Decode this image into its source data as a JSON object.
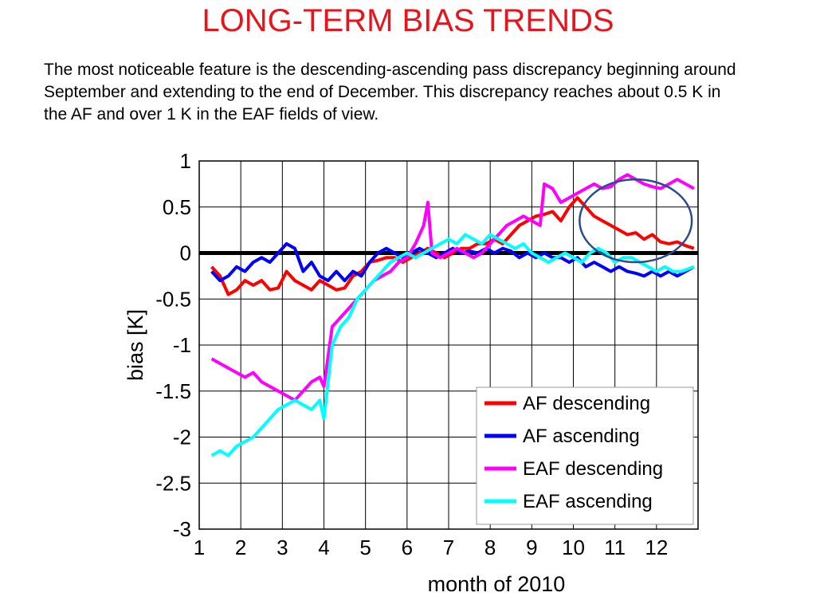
{
  "title": "LONG-TERM BIAS TRENDS",
  "description": "The most noticeable feature is the descending-ascending pass discrepancy beginning around September and extending to the end of December. This discrepancy reaches about 0.5 K in the AF and over 1 K in the EAF fields of view.",
  "chart_data": {
    "type": "line",
    "xlabel": "month of 2010",
    "ylabel": "bias [K]",
    "xlim": [
      1,
      13
    ],
    "ylim": [
      -3,
      1
    ],
    "x_ticks": [
      "1",
      "2",
      "3",
      "4",
      "5",
      "6",
      "7",
      "8",
      "9",
      "10",
      "11",
      "12"
    ],
    "y_ticks": [
      "1",
      "0.5",
      "0",
      "-0.5",
      "-1",
      "-1.5",
      "-2",
      "-2.5",
      "-3"
    ],
    "grid": true,
    "legend_position": "bottom-right",
    "zero_line": 0,
    "highlight_ellipse": {
      "center": [
        11.5,
        0.35
      ],
      "x_radius": 1.35,
      "y_radius": 0.45
    },
    "series": [
      {
        "name": "AF descending",
        "color": "#ff0000",
        "x": [
          1.3,
          1.5,
          1.7,
          1.9,
          2.1,
          2.3,
          2.5,
          2.7,
          2.9,
          3.1,
          3.3,
          3.5,
          3.7,
          3.9,
          4.1,
          4.3,
          4.5,
          4.7,
          4.9,
          5.1,
          5.3,
          5.5,
          5.7,
          5.9,
          6.1,
          6.3,
          6.5,
          6.7,
          6.9,
          7.1,
          7.3,
          7.5,
          7.7,
          7.9,
          8.1,
          8.3,
          8.5,
          8.7,
          8.9,
          9.1,
          9.3,
          9.5,
          9.7,
          9.9,
          10.1,
          10.3,
          10.5,
          10.7,
          10.9,
          11.1,
          11.3,
          11.5,
          11.7,
          11.9,
          12.1,
          12.3,
          12.5,
          12.7,
          12.9
        ],
        "y": [
          -0.15,
          -0.25,
          -0.45,
          -0.4,
          -0.3,
          -0.35,
          -0.3,
          -0.4,
          -0.38,
          -0.2,
          -0.3,
          -0.35,
          -0.4,
          -0.3,
          -0.35,
          -0.4,
          -0.38,
          -0.25,
          -0.2,
          -0.1,
          -0.08,
          -0.05,
          -0.05,
          -0.1,
          -0.05,
          0.0,
          0.05,
          0.0,
          -0.05,
          0.0,
          0.05,
          0.05,
          0.1,
          0.1,
          0.15,
          0.1,
          0.2,
          0.3,
          0.35,
          0.4,
          0.42,
          0.45,
          0.35,
          0.5,
          0.6,
          0.5,
          0.4,
          0.35,
          0.3,
          0.25,
          0.2,
          0.22,
          0.15,
          0.2,
          0.12,
          0.1,
          0.12,
          0.08,
          0.05
        ]
      },
      {
        "name": "AF ascending",
        "color": "#0000ff",
        "x": [
          1.3,
          1.5,
          1.7,
          1.9,
          2.1,
          2.3,
          2.5,
          2.7,
          2.9,
          3.1,
          3.3,
          3.5,
          3.7,
          3.9,
          4.1,
          4.3,
          4.5,
          4.7,
          4.9,
          5.1,
          5.3,
          5.5,
          5.7,
          5.9,
          6.1,
          6.3,
          6.5,
          6.7,
          6.9,
          7.1,
          7.3,
          7.5,
          7.7,
          7.9,
          8.1,
          8.3,
          8.5,
          8.7,
          8.9,
          9.1,
          9.3,
          9.5,
          9.7,
          9.9,
          10.1,
          10.3,
          10.5,
          10.7,
          10.9,
          11.1,
          11.3,
          11.5,
          11.7,
          11.9,
          12.1,
          12.3,
          12.5,
          12.7,
          12.9
        ],
        "y": [
          -0.2,
          -0.3,
          -0.25,
          -0.15,
          -0.2,
          -0.1,
          -0.05,
          -0.1,
          0.0,
          0.1,
          0.05,
          -0.2,
          -0.1,
          -0.25,
          -0.3,
          -0.2,
          -0.3,
          -0.2,
          -0.25,
          -0.1,
          0.0,
          0.05,
          0.0,
          -0.05,
          0.0,
          0.05,
          0.0,
          -0.05,
          0.0,
          0.05,
          0.0,
          0.02,
          0.0,
          0.05,
          0.0,
          0.05,
          0.02,
          -0.05,
          0.0,
          -0.05,
          0.0,
          -0.05,
          -0.05,
          -0.1,
          -0.05,
          -0.15,
          -0.1,
          -0.15,
          -0.2,
          -0.15,
          -0.2,
          -0.22,
          -0.25,
          -0.2,
          -0.25,
          -0.2,
          -0.25,
          -0.2,
          -0.15
        ]
      },
      {
        "name": "EAF descending",
        "color": "#ff00ff",
        "x": [
          1.3,
          1.5,
          1.7,
          1.9,
          2.1,
          2.3,
          2.5,
          2.7,
          2.9,
          3.1,
          3.3,
          3.5,
          3.7,
          3.9,
          4.0,
          4.2,
          4.4,
          4.6,
          4.8,
          5.0,
          5.2,
          5.4,
          5.6,
          5.8,
          6.0,
          6.2,
          6.4,
          6.5,
          6.6,
          6.8,
          7.0,
          7.2,
          7.4,
          7.6,
          7.8,
          8.0,
          8.2,
          8.4,
          8.6,
          8.8,
          9.0,
          9.2,
          9.3,
          9.5,
          9.7,
          9.9,
          10.1,
          10.3,
          10.5,
          10.7,
          10.9,
          11.1,
          11.3,
          11.5,
          11.7,
          11.9,
          12.1,
          12.3,
          12.5,
          12.7,
          12.9
        ],
        "y": [
          -1.15,
          -1.2,
          -1.25,
          -1.3,
          -1.35,
          -1.3,
          -1.4,
          -1.45,
          -1.5,
          -1.55,
          -1.6,
          -1.5,
          -1.4,
          -1.35,
          -1.45,
          -0.8,
          -0.7,
          -0.6,
          -0.5,
          -0.4,
          -0.3,
          -0.25,
          -0.2,
          -0.1,
          -0.05,
          0.1,
          0.3,
          0.55,
          0.0,
          -0.05,
          0.0,
          0.05,
          0.0,
          -0.05,
          0.0,
          0.1,
          0.2,
          0.3,
          0.35,
          0.4,
          0.35,
          0.3,
          0.75,
          0.7,
          0.55,
          0.6,
          0.65,
          0.7,
          0.75,
          0.7,
          0.72,
          0.8,
          0.85,
          0.8,
          0.75,
          0.72,
          0.7,
          0.75,
          0.8,
          0.75,
          0.7
        ]
      },
      {
        "name": "EAF ascending",
        "color": "#00ffff",
        "x": [
          1.3,
          1.5,
          1.7,
          1.9,
          2.1,
          2.3,
          2.5,
          2.7,
          2.9,
          3.1,
          3.3,
          3.5,
          3.7,
          3.9,
          4.0,
          4.2,
          4.4,
          4.6,
          4.8,
          5.0,
          5.2,
          5.4,
          5.6,
          5.8,
          6.0,
          6.2,
          6.4,
          6.6,
          6.8,
          7.0,
          7.2,
          7.4,
          7.6,
          7.8,
          8.0,
          8.2,
          8.4,
          8.6,
          8.8,
          9.0,
          9.2,
          9.4,
          9.6,
          9.8,
          10.0,
          10.2,
          10.4,
          10.6,
          10.8,
          11.0,
          11.2,
          11.4,
          11.6,
          11.8,
          12.0,
          12.2,
          12.4,
          12.6,
          12.9
        ],
        "y": [
          -2.2,
          -2.15,
          -2.2,
          -2.1,
          -2.05,
          -2.0,
          -1.9,
          -1.8,
          -1.7,
          -1.65,
          -1.6,
          -1.65,
          -1.7,
          -1.6,
          -1.8,
          -1.0,
          -0.8,
          -0.7,
          -0.5,
          -0.4,
          -0.3,
          -0.2,
          -0.1,
          -0.05,
          0.0,
          -0.05,
          0.0,
          0.05,
          0.1,
          0.15,
          0.1,
          0.2,
          0.15,
          0.1,
          0.2,
          0.15,
          0.1,
          0.05,
          0.1,
          0.0,
          -0.05,
          -0.1,
          -0.05,
          0.0,
          -0.05,
          -0.1,
          0.0,
          0.05,
          0.0,
          -0.1,
          -0.05,
          -0.05,
          -0.1,
          -0.15,
          -0.2,
          -0.15,
          -0.2,
          -0.2,
          -0.15
        ]
      }
    ]
  }
}
